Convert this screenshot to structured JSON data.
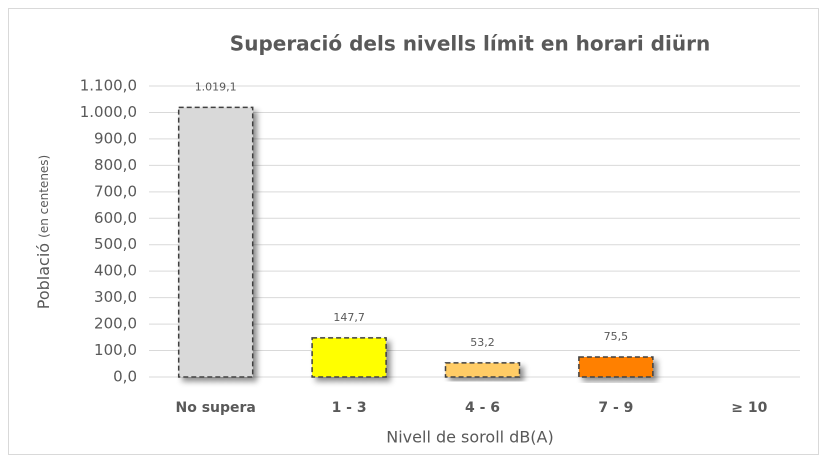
{
  "chart_data": {
    "type": "bar",
    "title": "Superació dels nivells límit en horari diürn",
    "xlabel": "Nivell de soroll dB(A)",
    "ylabel": "Població",
    "ylabel_unit": "(en centenes)",
    "categories": [
      "No supera",
      "1 - 3",
      "4 - 6",
      "7 - 9",
      "≥ 10"
    ],
    "values": [
      1019.1,
      147.7,
      53.2,
      75.5,
      null
    ],
    "value_labels": [
      "1.019,1",
      "147,7",
      "53,2",
      "75,5",
      null
    ],
    "colors": [
      "#d9d9d9",
      "#ffff00",
      "#ffcc66",
      "#ff8000",
      "#ff0000"
    ],
    "ylim": [
      0,
      1100
    ],
    "yticks": [
      {
        "value": 0,
        "label": "0,0"
      },
      {
        "value": 100,
        "label": "100,0"
      },
      {
        "value": 200,
        "label": "200,0"
      },
      {
        "value": 300,
        "label": "300,0"
      },
      {
        "value": 400,
        "label": "400,0"
      },
      {
        "value": 500,
        "label": "500,0"
      },
      {
        "value": 600,
        "label": "600,0"
      },
      {
        "value": 700,
        "label": "700,0"
      },
      {
        "value": 800,
        "label": "800,0"
      },
      {
        "value": 900,
        "label": "900,0"
      },
      {
        "value": 1000,
        "label": "1.000,0"
      },
      {
        "value": 1100,
        "label": "1.100,0"
      }
    ],
    "grid": true
  }
}
